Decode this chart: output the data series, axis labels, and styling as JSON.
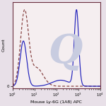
{
  "title": "",
  "xlabel": "Mouse Ly-6G (1A8) APC",
  "ylabel": "Count",
  "background_color": "#e8e0e8",
  "plot_bg_color": "#f5eef0",
  "border_color": "#6b3040",
  "solid_color": "#2222bb",
  "dashed_color": "#884444",
  "watermark_color": "#c8cce0",
  "iso_peak_log": 0.55,
  "iso_sigma": 0.18,
  "ab_small_peak_log": 0.5,
  "ab_small_sigma": 0.15,
  "ab_main_peak_log": 2.92,
  "ab_main_sigma": 0.1
}
